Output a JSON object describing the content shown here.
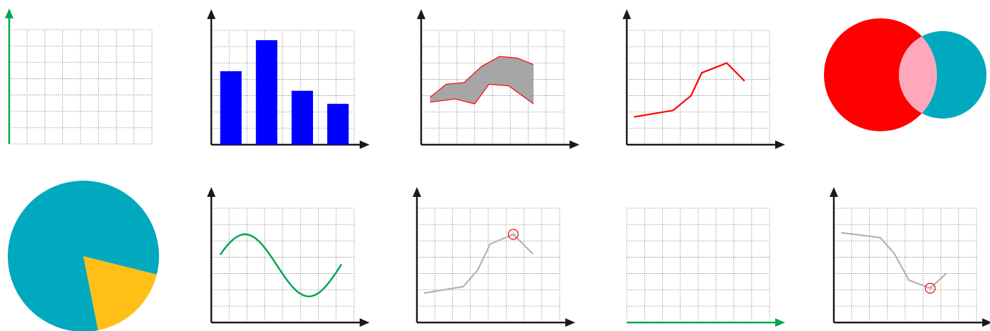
{
  "colors": {
    "axis": "#1a1a1a",
    "grid": "#8a8a8a",
    "accent_green": "#00a651",
    "bar_blue": "#0000ff",
    "band_gray": "#a6a6a6",
    "line_red": "#ff0000",
    "line_gray": "#b3b3b3",
    "venn_red": "#ff0000",
    "venn_teal": "#00a9bd",
    "venn_overlap": "#ffa8bd",
    "pie_teal": "#00a9bd",
    "pie_yellow": "#ffbf16"
  },
  "icons": [
    {
      "name": "y-axis-highlight-icon"
    },
    {
      "name": "bar-chart-icon",
      "values": [
        4.5,
        6.4,
        3.3,
        2.5
      ]
    },
    {
      "name": "area-band-chart-icon",
      "upper": [
        [
          0.5,
          2.9
        ],
        [
          1.4,
          3.7
        ],
        [
          2.4,
          3.8
        ],
        [
          3.4,
          4.8
        ],
        [
          4.4,
          5.4
        ],
        [
          5.4,
          5.3
        ],
        [
          6.3,
          4.9
        ]
      ],
      "lower": [
        [
          0.5,
          2.6
        ],
        [
          1.9,
          2.8
        ],
        [
          3.0,
          2.5
        ],
        [
          3.8,
          3.7
        ],
        [
          4.9,
          3.6
        ],
        [
          6.3,
          2.5
        ]
      ]
    },
    {
      "name": "line-chart-icon",
      "points": [
        [
          0.4,
          1.7
        ],
        [
          2.6,
          2.1
        ],
        [
          3.6,
          3.0
        ],
        [
          4.2,
          4.4
        ],
        [
          5.6,
          5.0
        ],
        [
          6.6,
          3.9
        ]
      ]
    },
    {
      "name": "venn-diagram-icon"
    },
    {
      "name": "pie-chart-icon",
      "slices": [
        82,
        18
      ]
    },
    {
      "name": "sine-curve-icon"
    },
    {
      "name": "line-point-max-icon",
      "points": [
        [
          0.4,
          1.8
        ],
        [
          2.6,
          2.2
        ],
        [
          3.4,
          3.2
        ],
        [
          4.1,
          4.8
        ],
        [
          5.4,
          5.4
        ],
        [
          6.5,
          4.2
        ]
      ],
      "marker": 4
    },
    {
      "name": "x-axis-highlight-icon"
    },
    {
      "name": "line-point-min-icon",
      "points": [
        [
          0.4,
          5.5
        ],
        [
          2.6,
          5.2
        ],
        [
          3.4,
          4.2
        ],
        [
          4.2,
          2.6
        ],
        [
          5.4,
          2.1
        ],
        [
          6.3,
          3.0
        ]
      ],
      "marker": 4
    }
  ]
}
